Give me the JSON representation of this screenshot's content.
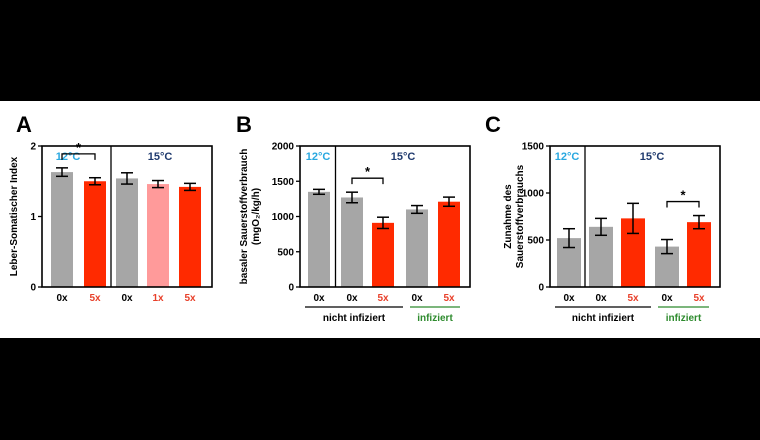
{
  "colors": {
    "gray": "#a6a6a6",
    "red": "#ff2a00",
    "pink": "#ff9a9a",
    "temp12": "#29a8e0",
    "temp15": "#1f3a6e",
    "green": "#2e8b2e",
    "label_red": "#e8402a"
  },
  "chart_data": [
    {
      "panel": "A",
      "type": "bar",
      "ylabel_lines": [
        "Leber-Somatischer Index"
      ],
      "ylim": [
        0,
        2
      ],
      "yticks": [
        0,
        1,
        2
      ],
      "temps": [
        "12°C",
        "15°C"
      ],
      "categories": [
        "0x",
        "5x",
        "0x",
        "1x",
        "5x"
      ],
      "category_colors": [
        "black",
        "red",
        "black",
        "red",
        "red"
      ],
      "values": [
        1.63,
        1.5,
        1.54,
        1.46,
        1.42
      ],
      "errors": [
        0.06,
        0.05,
        0.08,
        0.05,
        0.05
      ],
      "bar_colors": [
        "gray",
        "red",
        "gray",
        "pink",
        "red"
      ],
      "group_labels": [],
      "significance": [
        {
          "from": 0,
          "to": 1,
          "label": "*"
        }
      ]
    },
    {
      "panel": "B",
      "type": "bar",
      "ylabel_lines": [
        "basaler Sauerstoffverbrauch",
        "(mgO₂/kg/h)"
      ],
      "ylim": [
        0,
        2000
      ],
      "yticks": [
        0,
        500,
        1000,
        1500,
        2000
      ],
      "temps": [
        "12°C",
        "15°C"
      ],
      "categories": [
        "0x",
        "0x",
        "5x",
        "0x",
        "5x"
      ],
      "category_colors": [
        "black",
        "black",
        "red",
        "black",
        "red"
      ],
      "values": [
        1350,
        1270,
        910,
        1100,
        1210
      ],
      "errors": [
        35,
        75,
        80,
        55,
        65
      ],
      "bar_colors": [
        "gray",
        "gray",
        "red",
        "gray",
        "red"
      ],
      "group_labels": [
        {
          "label": "nicht infiziert",
          "color": "black"
        },
        {
          "label": "infiziert",
          "color": "green"
        }
      ],
      "significance": [
        {
          "from": 1,
          "to": 2,
          "label": "*"
        }
      ]
    },
    {
      "panel": "C",
      "type": "bar",
      "ylabel_lines": [
        "Zunahme des",
        "Sauerstoffverbrauchs"
      ],
      "ylim": [
        0,
        1500
      ],
      "yticks": [
        0,
        500,
        1000,
        1500
      ],
      "temps": [
        "12°C",
        "15°C"
      ],
      "categories": [
        "0x",
        "0x",
        "5x",
        "0x",
        "5x"
      ],
      "category_colors": [
        "black",
        "black",
        "red",
        "black",
        "red"
      ],
      "values": [
        520,
        640,
        730,
        430,
        690
      ],
      "errors": [
        100,
        90,
        160,
        75,
        70
      ],
      "bar_colors": [
        "gray",
        "gray",
        "red",
        "gray",
        "red"
      ],
      "group_labels": [
        {
          "label": "nicht infiziert",
          "color": "black"
        },
        {
          "label": "infiziert",
          "color": "green"
        }
      ],
      "significance": [
        {
          "from": 3,
          "to": 4,
          "label": "*"
        }
      ]
    }
  ]
}
